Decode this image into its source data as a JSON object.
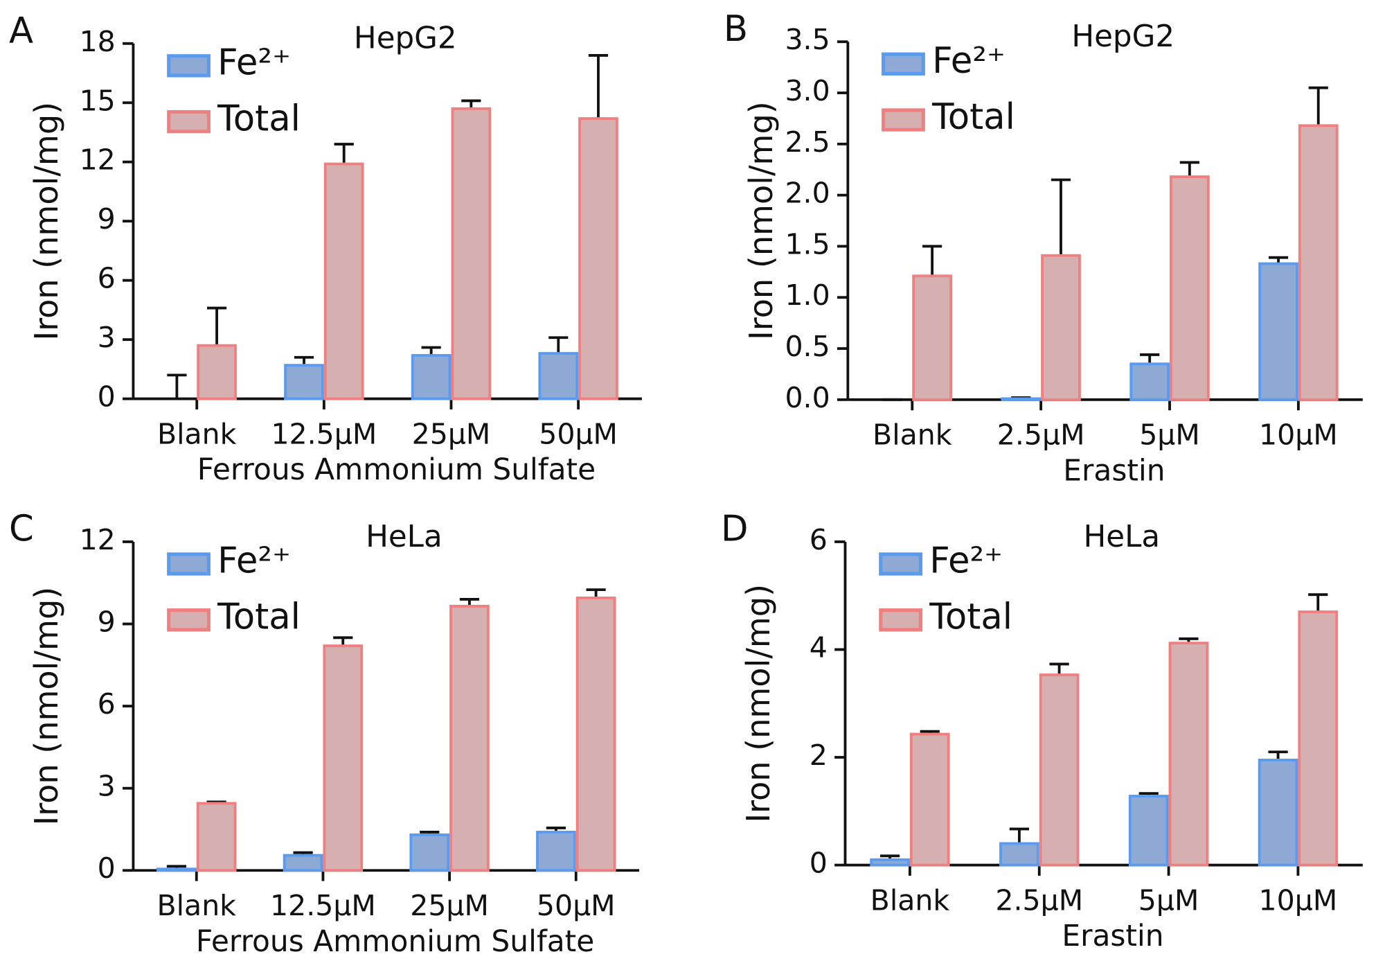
{
  "chart_data": [
    {
      "type": "bar",
      "panel": "A",
      "title": "HepG2",
      "xlabel": "Ferrous Ammonium Sulfate",
      "ylabel": "Iron (nmol/mg)",
      "categories": [
        "Blank",
        "12.5μM",
        "25μM",
        "50μM"
      ],
      "series": [
        {
          "name": "Fe²⁺",
          "color": "#5b9bef",
          "fill": "#8ea9d4",
          "values": [
            0,
            1.7,
            2.2,
            2.3
          ],
          "errors": [
            1.2,
            0.4,
            0.4,
            0.8
          ]
        },
        {
          "name": "Total",
          "color": "#f07f80",
          "fill": "#d6b0b0",
          "values": [
            2.7,
            11.9,
            14.7,
            14.2
          ],
          "errors": [
            1.9,
            1.0,
            0.4,
            3.2
          ]
        }
      ],
      "ylim": [
        0,
        18
      ],
      "yticks": [
        0,
        3,
        6,
        9,
        12,
        15,
        18
      ]
    },
    {
      "type": "bar",
      "panel": "B",
      "title": "HepG2",
      "xlabel": "Erastin",
      "ylabel": "Iron (nmol/mg)",
      "categories": [
        "Blank",
        "2.5μM",
        "5μM",
        "10μM"
      ],
      "series": [
        {
          "name": "Fe²⁺",
          "color": "#5b9bef",
          "fill": "#8ea9d4",
          "values": [
            0,
            0.01,
            0.35,
            1.33
          ],
          "errors": [
            0,
            0.01,
            0.09,
            0.06
          ]
        },
        {
          "name": "Total",
          "color": "#f07f80",
          "fill": "#d6b0b0",
          "values": [
            1.21,
            1.41,
            2.18,
            2.68
          ],
          "errors": [
            0.29,
            0.74,
            0.14,
            0.37
          ]
        }
      ],
      "ylim": [
        0,
        3.5
      ],
      "yticks": [
        {
          "value": 0,
          "label": "0.0"
        },
        0.5,
        {
          "value": 1,
          "label": "1.0"
        },
        1.5,
        {
          "value": 2,
          "label": "2.0"
        },
        2.5,
        {
          "value": 3,
          "label": "3.0"
        },
        3.5
      ]
    },
    {
      "type": "bar",
      "panel": "C",
      "title": "HeLa",
      "xlabel": "Ferrous Ammonium Sulfate",
      "ylabel": "Iron (nmol/mg)",
      "categories": [
        "Blank",
        "12.5μM",
        "25μM",
        "50μM"
      ],
      "series": [
        {
          "name": "Fe²⁺",
          "color": "#5b9bef",
          "fill": "#8ea9d4",
          "values": [
            0.05,
            0.55,
            1.3,
            1.4
          ],
          "errors": [
            0.1,
            0.1,
            0.1,
            0.15
          ]
        },
        {
          "name": "Total",
          "color": "#f07f80",
          "fill": "#d6b0b0",
          "values": [
            2.45,
            8.2,
            9.65,
            9.95
          ],
          "errors": [
            0.05,
            0.3,
            0.25,
            0.3
          ]
        }
      ],
      "ylim": [
        0,
        12
      ],
      "yticks": [
        0,
        3,
        6,
        9,
        12
      ]
    },
    {
      "type": "bar",
      "panel": "D",
      "title": "HeLa",
      "xlabel": "Erastin",
      "ylabel": "Iron (nmol/mg)",
      "categories": [
        "Blank",
        "2.5μM",
        "5μM",
        "10μM"
      ],
      "series": [
        {
          "name": "Fe²⁺",
          "color": "#5b9bef",
          "fill": "#8ea9d4",
          "values": [
            0.1,
            0.4,
            1.28,
            1.95
          ],
          "errors": [
            0.07,
            0.27,
            0.05,
            0.15
          ]
        },
        {
          "name": "Total",
          "color": "#f07f80",
          "fill": "#d6b0b0",
          "values": [
            2.43,
            3.53,
            4.12,
            4.7
          ],
          "errors": [
            0.05,
            0.2,
            0.08,
            0.32
          ]
        }
      ],
      "ylim": [
        0,
        6
      ],
      "yticks": [
        0,
        2,
        4,
        6
      ]
    }
  ]
}
